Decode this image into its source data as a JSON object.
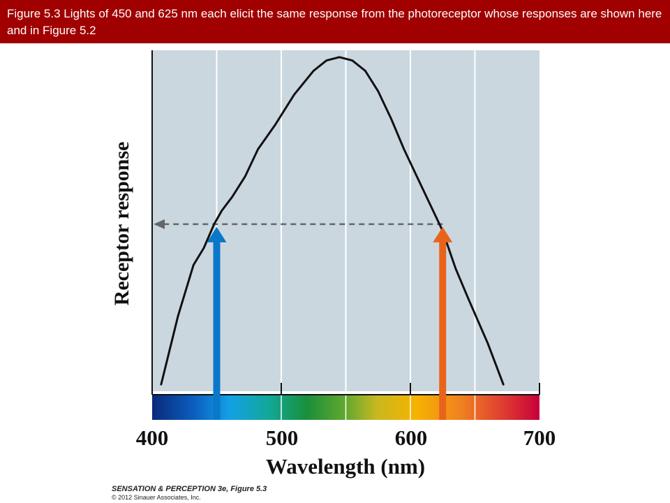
{
  "caption": "Figure 5.3  Lights of 450 and 625 nm each elicit the same response from the photoreceptor whose responses are shown here and in Figure 5.2",
  "credit": {
    "title": "SENSATION & PERCEPTION 3e, Figure 5.3",
    "copyright": "© 2012 Sinauer Associates, Inc."
  },
  "chart_data": {
    "type": "line",
    "xlabel": "Wavelength (nm)",
    "ylabel": "Receptor response",
    "xlim": [
      400,
      700
    ],
    "ylim": [
      0,
      1
    ],
    "x_ticks": [
      "400",
      "500",
      "600",
      "700"
    ],
    "x_tick_values": [
      400,
      500,
      600,
      700
    ],
    "gridlines_x": [
      450,
      500,
      550,
      600,
      650
    ],
    "grid": true,
    "series": [
      {
        "x": [
          407,
          420,
          432,
          440,
          448,
          454,
          462,
          472,
          482,
          495,
          510,
          525,
          535,
          545,
          555,
          565,
          575,
          585,
          595,
          605,
          615,
          625,
          635,
          645,
          660,
          672
        ],
        "y": [
          0.02,
          0.22,
          0.37,
          0.42,
          0.49,
          0.53,
          0.57,
          0.63,
          0.71,
          0.78,
          0.87,
          0.94,
          0.97,
          0.98,
          0.97,
          0.94,
          0.88,
          0.8,
          0.71,
          0.63,
          0.55,
          0.47,
          0.36,
          0.27,
          0.14,
          0.02
        ]
      }
    ],
    "response_level": 0.49,
    "stimuli": [
      {
        "wavelength": 450,
        "color": "#0a78c8"
      },
      {
        "wavelength": 625,
        "color": "#e8641a"
      }
    ],
    "colors": {
      "plot_background": "#cbd7df",
      "curve": "#111111",
      "dashed_arrow": "#666666",
      "banner": "#a00000"
    }
  }
}
